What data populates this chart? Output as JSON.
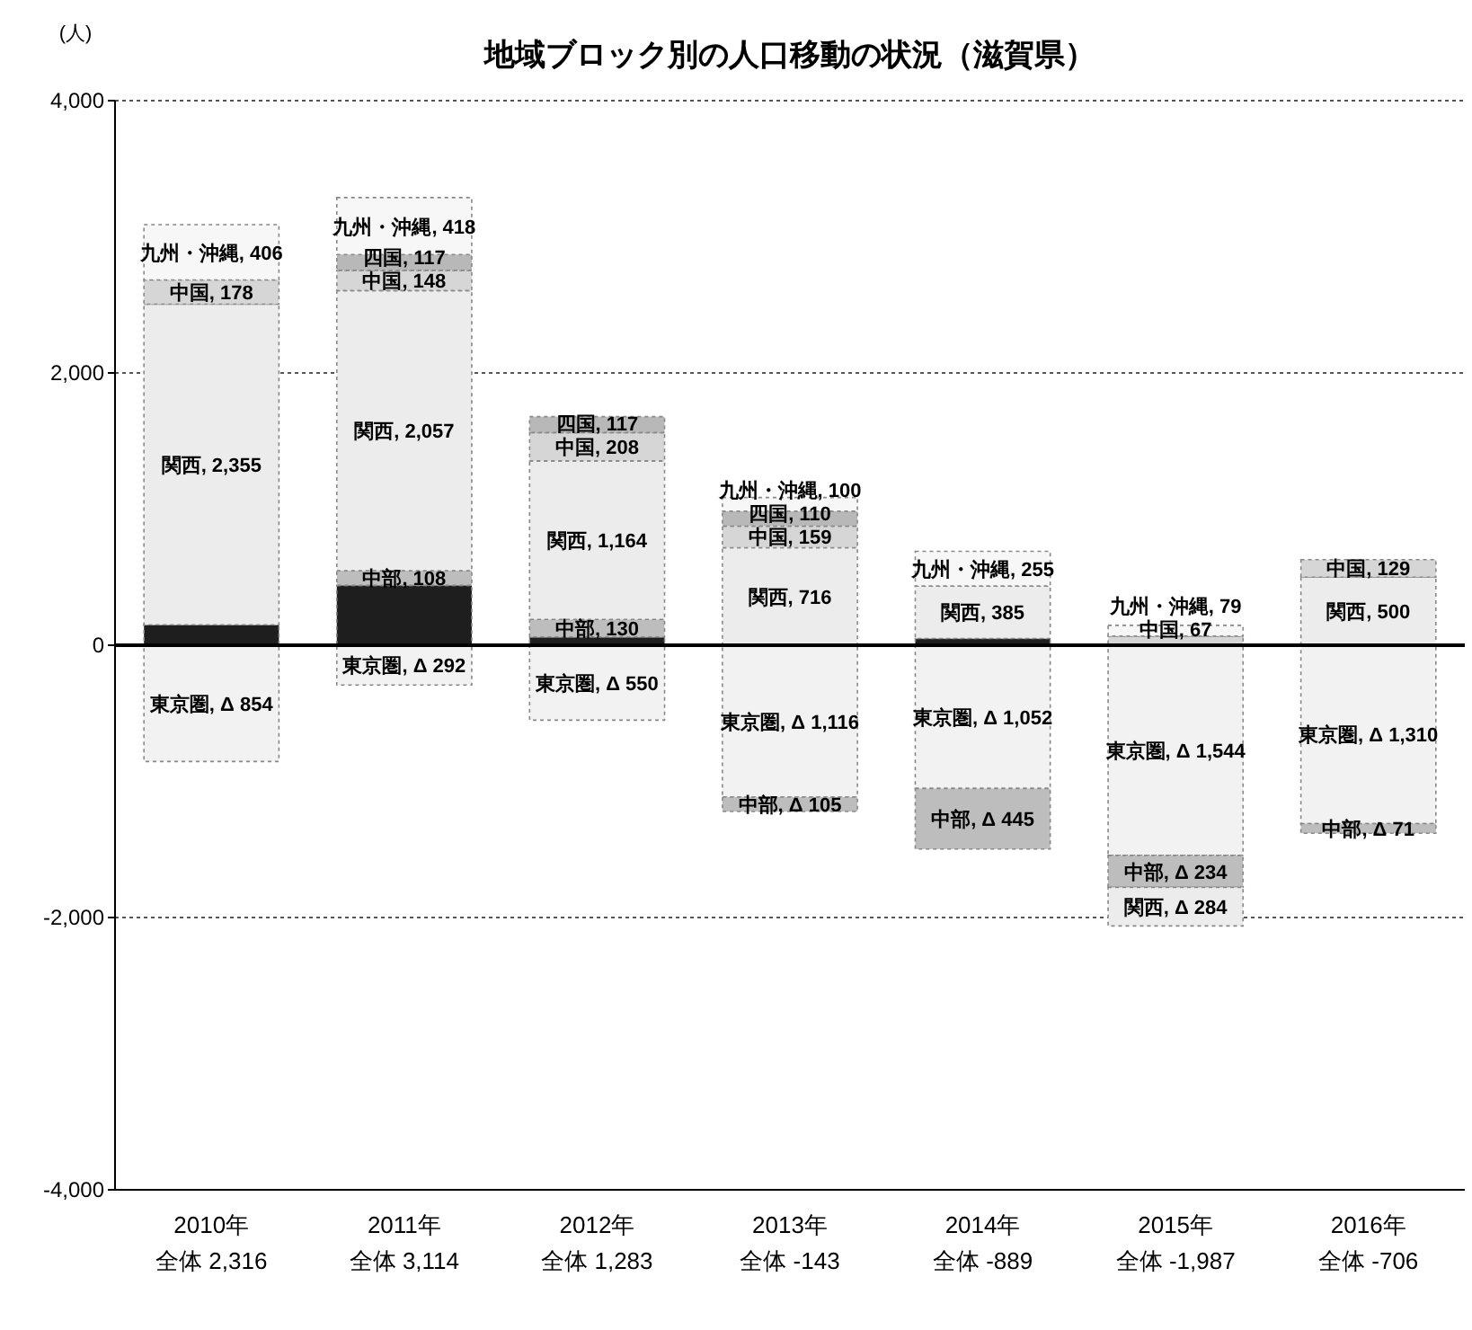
{
  "chart_data": {
    "type": "bar",
    "stacked": true,
    "title": "地域ブロック別の人口移動の状況（滋賀県）",
    "ylabel": "(人)",
    "categories": [
      "2010年",
      "2011年",
      "2012年",
      "2013年",
      "2014年",
      "2015年",
      "2016年"
    ],
    "annotations": [
      "全体 2,316",
      "全体 3,114",
      "全体 1,283",
      "全体 -143",
      "全体 -889",
      "全体 -1,987",
      "全体 -706"
    ],
    "series": [
      {
        "color": "#1e1e1e",
        "values": [
          150,
          440,
          60,
          null,
          50,
          null,
          null
        ]
      },
      {
        "color": "#f2f2f2",
        "values": [
          -854,
          -292,
          -550,
          -1116,
          -1052,
          -1544,
          -1310
        ],
        "value_labels": [
          "東京圏, Δ 854",
          "東京圏, Δ 292",
          "東京圏, Δ 550",
          "東京圏, Δ 1,116",
          "東京圏, Δ 1,052",
          "東京圏, Δ 1,544",
          "東京圏, Δ 1,310"
        ]
      },
      {
        "color": "#bdbdbd",
        "values": [
          null,
          108,
          130,
          -105,
          -445,
          -234,
          -71
        ],
        "value_labels": [
          null,
          "中部, 108",
          "中部, 130",
          "中部, Δ 105",
          "中部, Δ 445",
          "中部, Δ 234",
          "中部, Δ 71"
        ]
      },
      {
        "color": "#ececec",
        "values": [
          2355,
          2057,
          1164,
          716,
          385,
          -284,
          500
        ],
        "value_labels": [
          "関西, 2,355",
          "関西, 2,057",
          "関西, 1,164",
          "関西, 716",
          "関西, 385",
          "関西, Δ 284",
          "関西, 500"
        ]
      },
      {
        "color": "#d6d6d6",
        "values": [
          178,
          148,
          208,
          159,
          null,
          67,
          129
        ],
        "value_labels": [
          "中国, 178",
          "中国, 148",
          "中国, 208",
          "中国, 159",
          null,
          "中国, 67",
          "中国, 129"
        ]
      },
      {
        "color": "#b8b8b8",
        "values": [
          null,
          117,
          117,
          110,
          null,
          null,
          null
        ],
        "value_labels": [
          null,
          "四国, 117",
          "四国, 117",
          "四国, 110",
          null,
          null,
          null
        ]
      },
      {
        "color": "#f7f7f7",
        "values": [
          406,
          418,
          null,
          100,
          255,
          79,
          null
        ],
        "value_labels": [
          "九州・沖縄, 406",
          "九州・沖縄, 418",
          null,
          "九州・沖縄, 100",
          "九州・沖縄, 255",
          "九州・沖縄, 79",
          null
        ]
      }
    ],
    "ylim": [
      -4000,
      4000
    ],
    "yticks": [
      {
        "value": -4000,
        "label": "-4,000"
      },
      {
        "value": -2000,
        "label": "-2,000"
      },
      0,
      {
        "value": 2000,
        "label": "2,000"
      },
      {
        "value": 4000,
        "label": "4,000"
      }
    ],
    "grid": "y",
    "ref_lines": [
      {
        "axis": "y",
        "value": 0,
        "color": "#000000"
      }
    ]
  }
}
